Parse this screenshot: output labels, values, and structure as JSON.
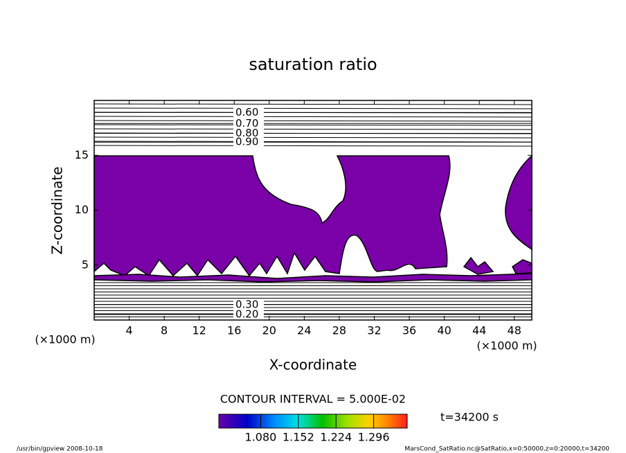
{
  "chart_data": {
    "type": "contour",
    "title": "saturation ratio",
    "xlabel": "X-coordinate",
    "ylabel": "Z-coordinate",
    "x_unit": "(×1000 m)",
    "y_unit": "(×1000 m)",
    "xlim": [
      0,
      50
    ],
    "xticks": [
      4,
      8,
      12,
      16,
      20,
      24,
      28,
      32,
      36,
      40,
      44,
      48
    ],
    "ylim": [
      0,
      20
    ],
    "yticks": [
      5,
      10,
      15
    ],
    "fill_color": "#7a00a8",
    "contour_lines": [
      {
        "level": {
          "value": 0.6,
          "label": "0.60"
        },
        "z": 18.9
      },
      {
        "level": {
          "value": 0.7,
          "label": "0.70"
        },
        "z": 17.9
      },
      {
        "level": {
          "value": 0.8,
          "label": "0.80"
        },
        "z": 17.0
      },
      {
        "level": {
          "value": 0.9,
          "label": "0.90"
        },
        "z": 16.2
      },
      {
        "level": {
          "value": 0.3,
          "label": "0.30"
        },
        "z": 1.4
      },
      {
        "level": {
          "value": 0.2,
          "label": "0.20"
        },
        "z": 0.5
      }
    ],
    "contour_interval": "CONTOUR INTERVAL = 5.000E-02",
    "colorbar_lim": [
      1.0,
      1.36
    ],
    "colorbar_ticks": [
      {
        "value": 1.08,
        "label": "1.080"
      },
      {
        "value": 1.152,
        "label": "1.152"
      },
      {
        "value": 1.224,
        "label": "1.224"
      },
      {
        "value": 1.296,
        "label": "1.296"
      }
    ],
    "time_label": "t=34200 s",
    "footer_left": "/usr/bin/gpview   2008-10-18",
    "footer_right": "MarsCond_SatRatio.nc@SatRatio,x=0:50000,z=0:20000,t=34200"
  }
}
